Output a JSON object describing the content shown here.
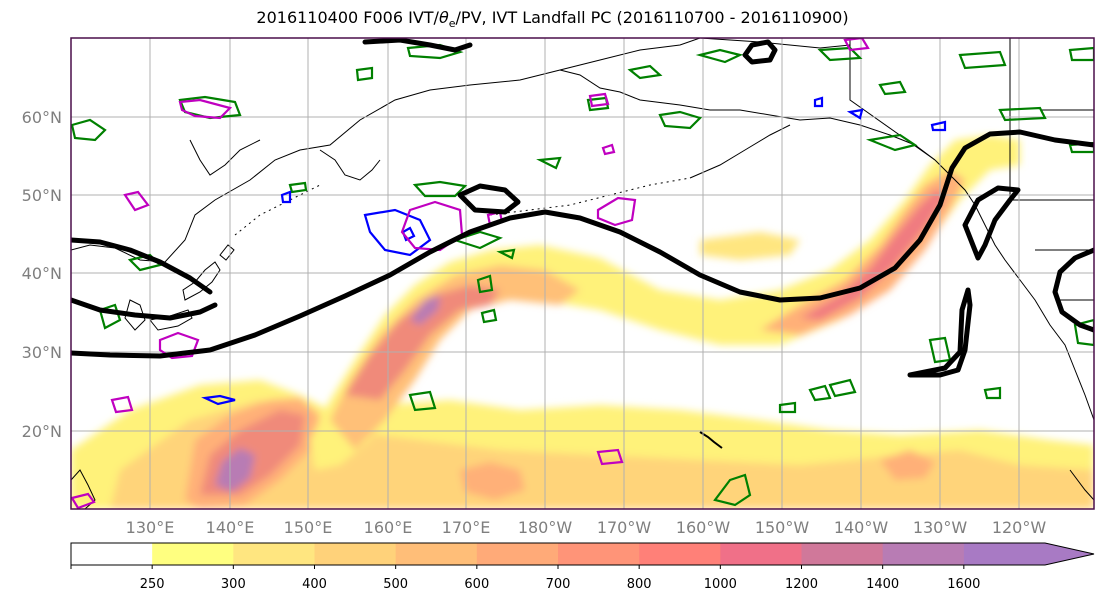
{
  "title": {
    "prefix": "2016110400 F006 IVT/",
    "theta": "θ",
    "theta_sub": "e",
    "suffix": "/PV, IVT Landfall PC (2016110700 - 2016110900)"
  },
  "map": {
    "lat_labels": [
      "60°N",
      "50°N",
      "40°N",
      "30°N",
      "20°N"
    ],
    "lon_labels": [
      "130°E",
      "140°E",
      "150°E",
      "160°E",
      "170°E",
      "180°W",
      "170°W",
      "160°W",
      "150°W",
      "140°W",
      "130°W",
      "120°W"
    ],
    "colors": {
      "geopotential_contour": "#000000",
      "theta_e_contour": "#008000",
      "pv_contour_a": "#0000ff",
      "pv_contour_b": "#c000c0",
      "coastline": "#000000",
      "gridline": "#b0b0b0"
    }
  },
  "colorbar": {
    "ticks": [
      "250",
      "300",
      "400",
      "500",
      "600",
      "700",
      "800",
      "1000",
      "1200",
      "1400",
      "1600"
    ],
    "colors": [
      "#ffffff",
      "#ffff80",
      "#ffe680",
      "#ffd27a",
      "#ffbe78",
      "#ffaa78",
      "#ff9478",
      "#ff8078",
      "#f07088",
      "#d0789a",
      "#b87cb4",
      "#a87ac4"
    ],
    "extend": "max"
  }
}
